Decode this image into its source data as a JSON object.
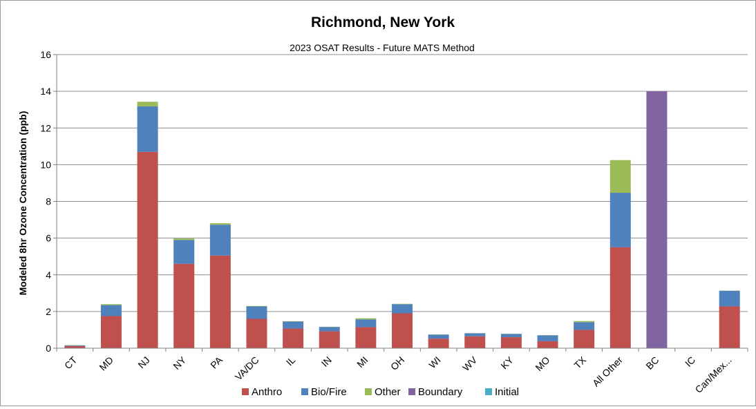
{
  "chart_data": {
    "type": "bar",
    "stacked": true,
    "title": "Richmond, New York",
    "subtitle": "2023 OSAT Results - Future MATS Method",
    "xlabel": "",
    "ylabel": "Modeled 8hr Ozone Concentration (ppb)",
    "ylim": [
      0,
      16
    ],
    "yticks": [
      "0",
      "2",
      "4",
      "6",
      "8",
      "10",
      "12",
      "14",
      "16"
    ],
    "grid": true,
    "legend_position": "bottom",
    "categories": [
      "CT",
      "MD",
      "NJ",
      "NY",
      "PA",
      "VA/DC",
      "IL",
      "IN",
      "MI",
      "OH",
      "WI",
      "WV",
      "KY",
      "MO",
      "TX",
      "All Other",
      "BC",
      "IC",
      "Can/Mex..."
    ],
    "series": [
      {
        "name": "Anthro",
        "color": "#c0504d",
        "values": [
          0.12,
          1.75,
          10.7,
          4.6,
          5.05,
          1.6,
          1.07,
          0.92,
          1.15,
          1.9,
          0.52,
          0.65,
          0.6,
          0.38,
          1.0,
          5.5,
          0,
          0,
          2.28
        ]
      },
      {
        "name": "Bio/Fire",
        "color": "#4f81bd",
        "values": [
          0.04,
          0.6,
          2.48,
          1.3,
          1.68,
          0.68,
          0.38,
          0.24,
          0.42,
          0.5,
          0.22,
          0.16,
          0.18,
          0.32,
          0.42,
          2.97,
          0,
          0,
          0.85
        ]
      },
      {
        "name": "Other",
        "color": "#9bbb59",
        "values": [
          0.01,
          0.05,
          0.25,
          0.08,
          0.08,
          0.02,
          0.02,
          0.01,
          0.06,
          0.02,
          0.01,
          0.01,
          0.01,
          0.01,
          0.06,
          1.78,
          0,
          0,
          0.01
        ]
      },
      {
        "name": "Boundary",
        "color": "#8064a2",
        "values": [
          0,
          0,
          0,
          0,
          0,
          0,
          0,
          0,
          0,
          0,
          0,
          0,
          0,
          0,
          0,
          0,
          14.0,
          0,
          0
        ]
      },
      {
        "name": "Initial",
        "color": "#4bacc6",
        "values": [
          0,
          0,
          0,
          0,
          0,
          0,
          0,
          0,
          0,
          0,
          0,
          0,
          0,
          0,
          0,
          0,
          0,
          0,
          0
        ]
      }
    ]
  }
}
